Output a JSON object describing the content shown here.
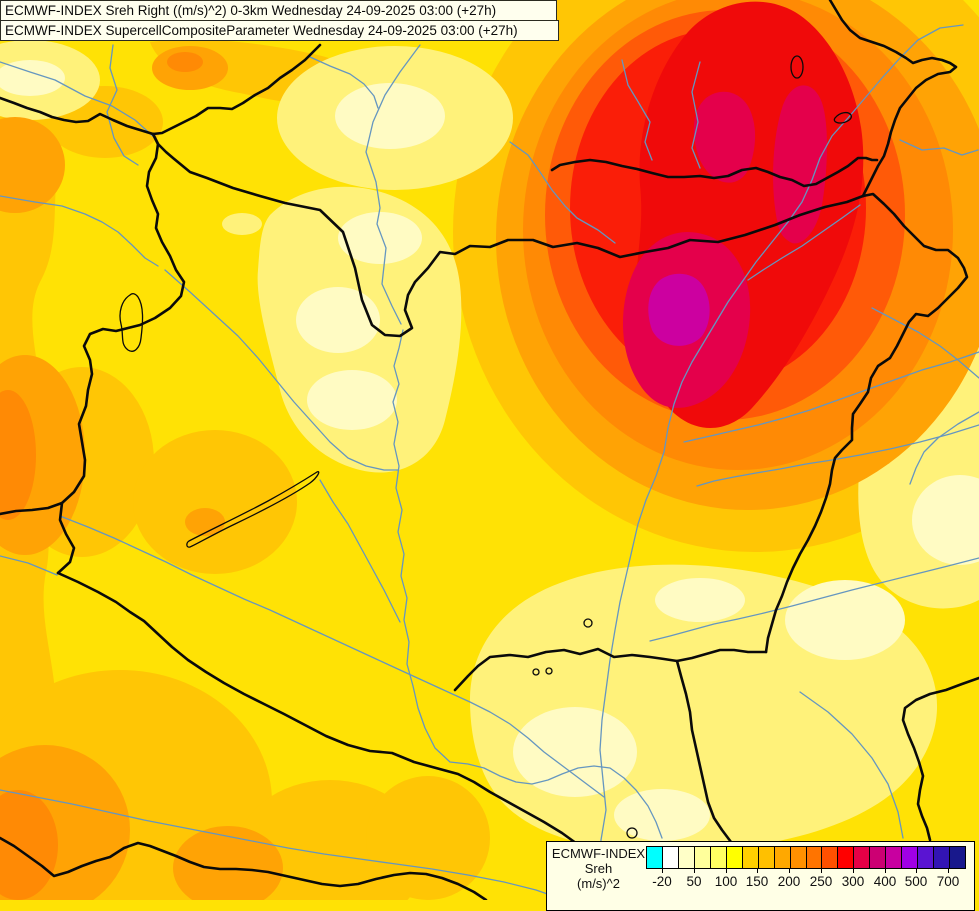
{
  "header": {
    "line1": "ECMWF-INDEX Sreh Right ((m/s)^2) 0-3km Wednesday 24-09-2025 03:00 (+27h)",
    "line2": "ECMWF-INDEX SupercellCompositeParameter Wednesday 24-09-2025 03:00 (+27h)"
  },
  "legend": {
    "title": "ECMWF-INDEX",
    "parameter": "Sreh",
    "unit": "(m/s)^2",
    "palette": [
      "#00FFFF",
      "#FFFFFF",
      "#FFFFC8",
      "#FFFF9B",
      "#FFFF62",
      "#FFFF00",
      "#FFD000",
      "#FFC000",
      "#FFA800",
      "#FF9000",
      "#FF7400",
      "#FF5000",
      "#FF0000",
      "#E60046",
      "#CC0073",
      "#C800A0",
      "#A000E6",
      "#5A14D2",
      "#3214B4",
      "#18188C"
    ],
    "tick_labels": [
      "-20",
      "50",
      "100",
      "150",
      "200",
      "250",
      "300",
      "400",
      "500",
      "700"
    ]
  },
  "map": {
    "base_color": "#FFE205",
    "max_core_color": "#CC00A0",
    "border_color": "#0A0A0A",
    "river_color": "#6596C0"
  }
}
